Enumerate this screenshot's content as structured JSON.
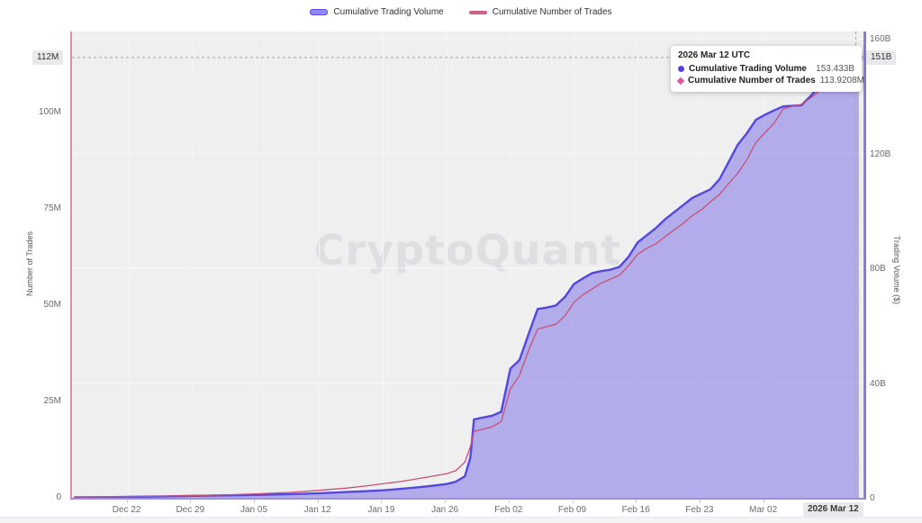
{
  "watermark": "CryptoQuant",
  "legend": {
    "items": [
      {
        "label": "Cumulative Trading Volume",
        "color": "#5b4ee4",
        "swatch_fill": "#9387f0",
        "swatch_h": 5
      },
      {
        "label": "Cumulative Number of Trades",
        "color": "#c65177",
        "swatch_fill": "#d4688f",
        "swatch_h": 2
      }
    ]
  },
  "tooltip": {
    "title": "2026 Mar 12 UTC",
    "rows": [
      {
        "label": "Cumulative Trading Volume",
        "value": "153.433B",
        "marker": "circle",
        "color": "#5547e2"
      },
      {
        "label": "Cumulative Number of Trades",
        "value": "113.9208M",
        "marker": "diamond",
        "color": "#e0559b"
      }
    ]
  },
  "axes": {
    "left": {
      "title": "Number of Trades",
      "ticks": [
        "0",
        "25M",
        "50M",
        "75M",
        "100M"
      ],
      "current_label": "112M"
    },
    "right": {
      "title": "Trading Volume ($)",
      "ticks": [
        "0",
        "40B",
        "80B",
        "120B",
        "160B"
      ],
      "current_label": "151B"
    },
    "x": {
      "ticks": [
        "Dec 22",
        "Dec 29",
        "Jan 05",
        "Jan 12",
        "Jan 19",
        "Jan 26",
        "Feb 02",
        "Feb 09",
        "Feb 16",
        "Feb 23",
        "Mar 02"
      ],
      "current_label": "2026 Mar 12"
    }
  },
  "chart_data": {
    "type": "area",
    "title": "",
    "x_axis": {
      "start_date": "Dec 16",
      "end_date": "Mar 12",
      "total_days": 87,
      "tick_days": [
        6,
        13,
        20,
        27,
        34,
        41,
        48,
        55,
        62,
        69,
        76
      ]
    },
    "left_axis": {
      "label": "Number of Trades",
      "unit": "M trades",
      "ticks": [
        0,
        25,
        50,
        75,
        100
      ],
      "range": [
        0,
        121
      ]
    },
    "right_axis": {
      "label": "Trading Volume ($)",
      "unit": "B USD",
      "ticks": [
        0,
        40,
        80,
        120,
        160
      ],
      "range": [
        0,
        162
      ]
    },
    "grid": true,
    "legend_position": "top",
    "series": [
      {
        "name": "Cumulative Trading Volume",
        "axis": "right",
        "unit": "B",
        "color": "#5547e2",
        "fill": "rgba(104,90,229,0.45)",
        "points": [
          [
            0,
            0.08
          ],
          [
            3,
            0.15
          ],
          [
            6,
            0.3
          ],
          [
            10,
            0.5
          ],
          [
            13,
            0.7
          ],
          [
            17,
            0.85
          ],
          [
            20,
            1.0
          ],
          [
            24,
            1.3
          ],
          [
            27,
            1.6
          ],
          [
            30,
            2.0
          ],
          [
            32,
            2.3
          ],
          [
            34,
            2.6
          ],
          [
            36,
            3.1
          ],
          [
            38,
            3.7
          ],
          [
            40,
            4.4
          ],
          [
            41,
            4.8
          ],
          [
            42,
            5.6
          ],
          [
            43,
            7.5
          ],
          [
            43.6,
            14.0
          ],
          [
            44,
            27.3
          ],
          [
            45,
            28.0
          ],
          [
            46,
            28.6
          ],
          [
            47,
            30.0
          ],
          [
            48,
            45.0
          ],
          [
            49,
            48.0
          ],
          [
            50,
            57.0
          ],
          [
            51,
            65.8
          ],
          [
            52,
            66.3
          ],
          [
            53,
            67.0
          ],
          [
            54,
            70.0
          ],
          [
            55,
            74.5
          ],
          [
            56,
            76.5
          ],
          [
            57,
            78.3
          ],
          [
            58,
            79.0
          ],
          [
            59,
            79.5
          ],
          [
            60,
            80.5
          ],
          [
            61,
            84.0
          ],
          [
            62,
            89.0
          ],
          [
            63,
            91.5
          ],
          [
            64,
            94.0
          ],
          [
            65,
            97.0
          ],
          [
            66,
            99.5
          ],
          [
            67,
            102.0
          ],
          [
            68,
            104.5
          ],
          [
            69,
            106.0
          ],
          [
            70,
            107.5
          ],
          [
            71,
            111.0
          ],
          [
            72,
            117.0
          ],
          [
            73,
            123.0
          ],
          [
            74,
            127.0
          ],
          [
            75,
            131.7
          ],
          [
            76,
            133.5
          ],
          [
            77,
            135.0
          ],
          [
            78,
            136.4
          ],
          [
            79,
            136.6
          ],
          [
            80,
            136.8
          ],
          [
            81,
            140.0
          ],
          [
            82,
            143.6
          ],
          [
            83,
            147.0
          ],
          [
            84,
            150.5
          ],
          [
            85,
            151.8
          ],
          [
            86,
            153.433
          ],
          [
            87.5,
            154.0
          ]
        ]
      },
      {
        "name": "Cumulative Number of Trades",
        "axis": "left",
        "unit": "M",
        "color": "#c65177",
        "fill": "none",
        "points": [
          [
            0,
            0.02
          ],
          [
            3,
            0.05
          ],
          [
            6,
            0.1
          ],
          [
            10,
            0.2
          ],
          [
            13,
            0.35
          ],
          [
            17,
            0.55
          ],
          [
            20,
            0.8
          ],
          [
            24,
            1.2
          ],
          [
            27,
            1.7
          ],
          [
            30,
            2.3
          ],
          [
            32,
            2.8
          ],
          [
            34,
            3.4
          ],
          [
            36,
            4.0
          ],
          [
            38,
            4.8
          ],
          [
            40,
            5.6
          ],
          [
            41,
            6.0
          ],
          [
            42,
            6.8
          ],
          [
            43,
            9.0
          ],
          [
            43.6,
            13.0
          ],
          [
            44,
            17.0
          ],
          [
            45,
            17.6
          ],
          [
            46,
            18.2
          ],
          [
            47,
            19.5
          ],
          [
            48,
            28.0
          ],
          [
            49,
            31.5
          ],
          [
            50,
            38.0
          ],
          [
            51,
            43.5
          ],
          [
            52,
            44.2
          ],
          [
            53,
            44.8
          ],
          [
            54,
            47.0
          ],
          [
            55,
            50.5
          ],
          [
            56,
            52.5
          ],
          [
            57,
            54.0
          ],
          [
            58,
            55.5
          ],
          [
            59,
            56.5
          ],
          [
            60,
            57.5
          ],
          [
            61,
            60.0
          ],
          [
            62,
            63.0
          ],
          [
            63,
            64.5
          ],
          [
            64,
            65.7
          ],
          [
            65,
            67.5
          ],
          [
            66,
            69.3
          ],
          [
            67,
            71.0
          ],
          [
            68,
            73.0
          ],
          [
            69,
            74.5
          ],
          [
            70,
            76.6
          ],
          [
            71,
            78.5
          ],
          [
            72,
            81.3
          ],
          [
            73,
            84.0
          ],
          [
            74,
            87.5
          ],
          [
            75,
            92.0
          ],
          [
            76,
            94.5
          ],
          [
            77,
            97.0
          ],
          [
            78,
            100.7
          ],
          [
            79,
            101.4
          ],
          [
            80,
            101.9
          ],
          [
            81,
            103.5
          ],
          [
            82,
            105.4
          ],
          [
            83,
            107.5
          ],
          [
            84,
            109.5
          ],
          [
            85,
            111.5
          ],
          [
            86,
            113.9208
          ],
          [
            87.5,
            114.3
          ]
        ]
      }
    ],
    "hover_point": {
      "day": 86,
      "date": "2026 Mar 12 UTC",
      "trading_volume_B": 153.433,
      "number_of_trades_M": 113.9208
    }
  }
}
